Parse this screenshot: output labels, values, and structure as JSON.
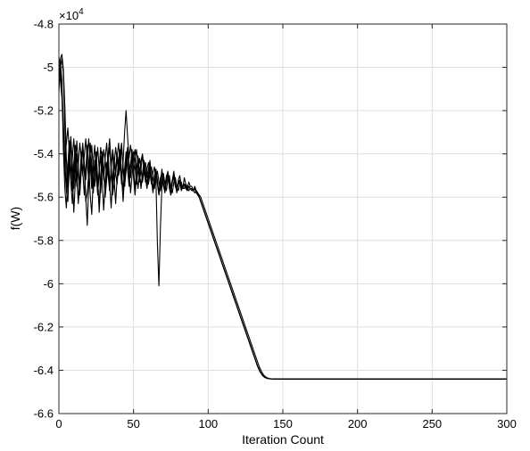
{
  "chart_data": {
    "type": "line",
    "title": "",
    "xlabel": "Iteration Count",
    "ylabel": "f(W)",
    "xlim": [
      0,
      300
    ],
    "ylim": [
      -66000,
      -48000
    ],
    "x_ticks": [
      0,
      50,
      100,
      150,
      200,
      250,
      300
    ],
    "y_ticks": [
      -66000,
      -64000,
      -62000,
      -60000,
      -58000,
      -56000,
      -54000,
      -52000,
      -50000,
      -48000
    ],
    "x_tick_labels": [
      "0",
      "50",
      "100",
      "150",
      "200",
      "250",
      "300"
    ],
    "y_tick_labels": [
      "-6.6",
      "-6.4",
      "-6.2",
      "-6",
      "-5.8",
      "-5.6",
      "-5.4",
      "-5.2",
      "-5",
      "-4.8"
    ],
    "y_multiplier_base": "×10",
    "y_multiplier_exp": "4",
    "grid": true,
    "legend": "none",
    "line_color": "#000000",
    "converged_value": -64400,
    "x_step": 1,
    "series": [
      {
        "values": [
          -50500,
          -49800,
          -50600,
          -53800,
          -55600,
          -56500,
          -55000,
          -54200,
          -55300,
          -56300,
          -55000,
          -53800,
          -54800,
          -56100,
          -55500,
          -54300,
          -53800,
          -54700,
          -56200,
          -55800,
          -54900,
          -53500,
          -54500,
          -55800,
          -54600,
          -54000,
          -55300,
          -56400,
          -55000,
          -53900,
          -54700,
          -56000,
          -55200,
          -54300,
          -53700,
          -54800,
          -55900,
          -55400,
          -54600,
          -54000,
          -55000,
          -54500,
          -53700,
          -54600,
          -55500,
          -54800,
          -53900,
          -54700,
          -55800,
          -55000,
          -54200,
          -53800,
          -54900,
          -55600,
          -54900,
          -54300,
          -54000,
          -54700,
          -55300,
          -55000,
          -54700,
          -54300,
          -55100,
          -55700,
          -55300,
          -54800,
          -55200,
          -55900,
          -55400,
          -54700,
          -55300,
          -55700,
          -55100,
          -54800,
          -55500,
          -55900,
          -55200,
          -54800,
          -55400,
          -55800,
          -55200,
          -55000,
          -55500,
          -55600,
          -55100,
          -55400,
          -55600,
          -55300,
          -55500,
          -55500,
          -55700,
          -55500,
          -55700,
          -55800,
          -56000,
          -56200,
          -56400,
          -56600,
          -56800,
          -57000,
          -57200,
          -57400,
          -57600,
          -57800,
          -58000,
          -58200,
          -58400,
          -58600,
          -58800,
          -59000,
          -59200,
          -59400,
          -59600,
          -59800,
          -60000,
          -60200,
          -60400,
          -60600,
          -60800,
          -61000,
          -61200,
          -61400,
          -61600,
          -61800,
          -62000,
          -62200,
          -62400,
          -62600,
          -62800,
          -63000,
          -63200,
          -63400,
          -63600,
          -63800,
          -63950,
          -64100,
          -64200,
          -64280,
          -64330,
          -64360,
          -64380,
          -64390,
          -64395,
          -64398,
          -64400
        ]
      },
      {
        "values": [
          -49500,
          -50200,
          -51000,
          -52500,
          -54800,
          -55600,
          -54500,
          -53400,
          -54700,
          -55700,
          -54400,
          -53600,
          -55000,
          -56300,
          -55200,
          -53900,
          -54800,
          -55900,
          -54800,
          -53600,
          -54500,
          -55900,
          -56800,
          -55200,
          -54300,
          -55100,
          -55800,
          -54800,
          -54100,
          -55300,
          -56600,
          -55400,
          -54400,
          -55000,
          -55700,
          -54600,
          -53900,
          -55100,
          -56300,
          -55100,
          -54200,
          -53800,
          -54900,
          -55700,
          -54700,
          -53900,
          -54500,
          -55300,
          -54500,
          -53800,
          -54700,
          -55600,
          -54800,
          -54100,
          -54900,
          -55500,
          -54900,
          -54300,
          -54800,
          -55400,
          -54900,
          -54500,
          -55200,
          -55600,
          -55000,
          -54700,
          -55300,
          -55800,
          -55100,
          -54900,
          -55500,
          -55700,
          -55000,
          -54900,
          -55600,
          -55900,
          -55300,
          -55000,
          -55500,
          -55700,
          -55300,
          -55300,
          -55700,
          -55500,
          -55400,
          -55600,
          -55700,
          -55500,
          -55600,
          -55600,
          -55700,
          -55600,
          -55750,
          -55850,
          -56000,
          -56200,
          -56400,
          -56600,
          -56800,
          -57000,
          -57200,
          -57400,
          -57600,
          -57800,
          -58000,
          -58200,
          -58400,
          -58600,
          -58800,
          -59000,
          -59200,
          -59400,
          -59600,
          -59800,
          -60000,
          -60200,
          -60400,
          -60600,
          -60800,
          -61000,
          -61200,
          -61400,
          -61600,
          -61800,
          -62000,
          -62200,
          -62400,
          -62600,
          -62800,
          -63000,
          -63200,
          -63400,
          -63600,
          -63800,
          -63950,
          -64100,
          -64200,
          -64280,
          -64330,
          -64360,
          -64380,
          -64390,
          -64395,
          -64398,
          -64400
        ]
      },
      {
        "values": [
          -50800,
          -50000,
          -49600,
          -50300,
          -52800,
          -55700,
          -56200,
          -54600,
          -53500,
          -54900,
          -56700,
          -55300,
          -54000,
          -54900,
          -55700,
          -54300,
          -53500,
          -54600,
          -56000,
          -57300,
          -55400,
          -54200,
          -55000,
          -55800,
          -54600,
          -53900,
          -55200,
          -56700,
          -55300,
          -54100,
          -54900,
          -55800,
          -54700,
          -54000,
          -55300,
          -56500,
          -55100,
          -54300,
          -54900,
          -55400,
          -54400,
          -53900,
          -55000,
          -56200,
          -55000,
          -54100,
          -54700,
          -55500,
          -54600,
          -54000,
          -55100,
          -55900,
          -55000,
          -54300,
          -54900,
          -55600,
          -55000,
          -54500,
          -55100,
          -55600,
          -55100,
          -54600,
          -55200,
          -55800,
          -55200,
          -54800,
          -55400,
          -55900,
          -55300,
          -54900,
          -55400,
          -55800,
          -55300,
          -55000,
          -55500,
          -55800,
          -55300,
          -55100,
          -55500,
          -55700,
          -55400,
          -55300,
          -55600,
          -55600,
          -55400,
          -55500,
          -55700,
          -55500,
          -55600,
          -55700,
          -55700,
          -55600,
          -55800,
          -55900,
          -56000,
          -56200,
          -56400,
          -56600,
          -56800,
          -57000,
          -57200,
          -57400,
          -57600,
          -57800,
          -58000,
          -58200,
          -58400,
          -58600,
          -58800,
          -59000,
          -59200,
          -59400,
          -59600,
          -59800,
          -60000,
          -60200,
          -60400,
          -60600,
          -60800,
          -61000,
          -61200,
          -61400,
          -61600,
          -61800,
          -62000,
          -62200,
          -62400,
          -62600,
          -62800,
          -63000,
          -63200,
          -63400,
          -63600,
          -63800,
          -63950,
          -64100,
          -64200,
          -64280,
          -64330,
          -64360,
          -64380,
          -64390,
          -64395,
          -64398,
          -64400
        ]
      },
      {
        "values": [
          -51200,
          -49600,
          -49400,
          -50100,
          -51800,
          -54200,
          -55500,
          -54000,
          -53200,
          -54400,
          -55600,
          -54500,
          -53400,
          -54600,
          -55900,
          -54800,
          -53700,
          -54400,
          -55200,
          -54100,
          -53300,
          -54500,
          -55600,
          -54400,
          -53600,
          -54800,
          -55900,
          -54700,
          -53700,
          -54300,
          -55200,
          -54200,
          -53500,
          -54600,
          -55700,
          -54600,
          -53800,
          -54400,
          -55000,
          -54100,
          -53500,
          -54500,
          -55400,
          -54400,
          -53000,
          -52000,
          -53200,
          -54200,
          -53600,
          -54200,
          -54900,
          -54300,
          -53800,
          -54500,
          -55300,
          -54700,
          -54100,
          -54600,
          -55200,
          -54700,
          -54400,
          -54900,
          -55400,
          -54900,
          -54600,
          -55200,
          -58200,
          -60100,
          -57400,
          -55500,
          -55000,
          -55400,
          -55100,
          -54900,
          -55300,
          -55600,
          -55200,
          -55000,
          -55400,
          -55600,
          -55300,
          -55200,
          -55500,
          -55500,
          -55400,
          -55500,
          -55600,
          -55500,
          -55600,
          -55600,
          -55700,
          -55600,
          -55800,
          -55900,
          -56000,
          -56200,
          -56400,
          -56600,
          -56800,
          -57000,
          -57200,
          -57400,
          -57600,
          -57800,
          -58000,
          -58200,
          -58400,
          -58600,
          -58800,
          -59000,
          -59200,
          -59400,
          -59600,
          -59800,
          -60000,
          -60200,
          -60400,
          -60600,
          -60800,
          -61000,
          -61200,
          -61400,
          -61600,
          -61800,
          -62000,
          -62200,
          -62400,
          -62600,
          -62800,
          -63000,
          -63200,
          -63400,
          -63600,
          -63800,
          -63950,
          -64100,
          -64200,
          -64280,
          -64330,
          -64360,
          -64380,
          -64390,
          -64395,
          -64398,
          -64400
        ]
      },
      {
        "values": [
          -50100,
          -50600,
          -51400,
          -53000,
          -54300,
          -53500,
          -52800,
          -53900,
          -55100,
          -54200,
          -53300,
          -54400,
          -55500,
          -54500,
          -53500,
          -54200,
          -55000,
          -54100,
          -53300,
          -54300,
          -55300,
          -54400,
          -53600,
          -54700,
          -55500,
          -54500,
          -53700,
          -54700,
          -55800,
          -54700,
          -53800,
          -54300,
          -55000,
          -54000,
          -53300,
          -54500,
          -55600,
          -54500,
          -53700,
          -54300,
          -54900,
          -54000,
          -53500,
          -54600,
          -55500,
          -54300,
          -53700,
          -54400,
          -55100,
          -54400,
          -53900,
          -54600,
          -55400,
          -54800,
          -54200,
          -54700,
          -55300,
          -54800,
          -54400,
          -54900,
          -55400,
          -54900,
          -54600,
          -55100,
          -55600,
          -55100,
          -54800,
          -55300,
          -55700,
          -55200,
          -54900,
          -55400,
          -55700,
          -55200,
          -55000,
          -55500,
          -55800,
          -55300,
          -55100,
          -55500,
          -55700,
          -55400,
          -55300,
          -55600,
          -55600,
          -55400,
          -55500,
          -55700,
          -55600,
          -55600,
          -55700,
          -55800,
          -55700,
          -55800,
          -55900,
          -56000,
          -56200,
          -56400,
          -56600,
          -56800,
          -57000,
          -57200,
          -57400,
          -57600,
          -57800,
          -58000,
          -58200,
          -58400,
          -58600,
          -58800,
          -59000,
          -59200,
          -59400,
          -59600,
          -59800,
          -60000,
          -60200,
          -60400,
          -60600,
          -60800,
          -61000,
          -61200,
          -61400,
          -61600,
          -61800,
          -62000,
          -62200,
          -62400,
          -62600,
          -62800,
          -63000,
          -63200,
          -63400,
          -63600,
          -63800,
          -63950,
          -64100,
          -64200,
          -64280,
          -64330,
          -64360,
          -64380,
          -64390,
          -64395,
          -64398,
          -64400
        ]
      }
    ]
  }
}
